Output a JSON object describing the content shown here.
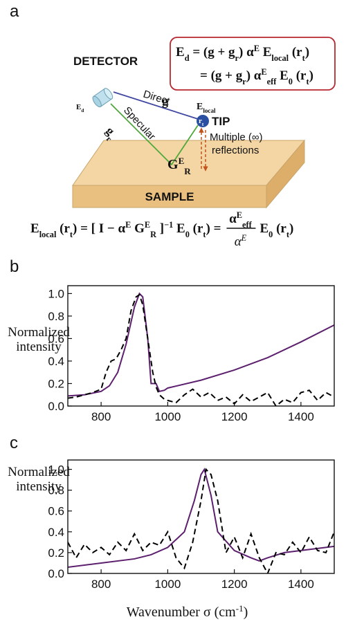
{
  "panel_a": {
    "label": "a",
    "detector": "DETECTOR",
    "detector_field": [
      {
        "t": "E",
        "sub": "d"
      }
    ],
    "direct": "Direct",
    "g": "g",
    "specular": "Specular",
    "g_r": [
      {
        "t": "g",
        "sub": "r"
      }
    ],
    "local_field": [
      {
        "t": "E",
        "sub": "local"
      }
    ],
    "tip_position": [
      {
        "t": "r",
        "sub": "t"
      }
    ],
    "tip": "TIP",
    "multiple": "Multiple (∞)",
    "reflections": "reflections",
    "green_function": [
      {
        "t": "G",
        "sub": "R",
        "sup": "E"
      }
    ],
    "sample": "SAMPLE",
    "box_equation": [
      [
        {
          "t": "E",
          "sub": "d"
        },
        {
          "t": " = (g + g",
          "sub": "r"
        },
        {
          "t": ") α",
          "sup": "E"
        },
        {
          "t": " E",
          "sub": "local"
        },
        {
          "t": " (r",
          "sub": "t"
        },
        {
          "t": ")"
        }
      ],
      [
        {
          "t": "= (g + g",
          "sub": "r"
        },
        {
          "t": ") α",
          "sup": "E",
          "sub": "eff"
        },
        {
          "t": " E",
          "sub": "0"
        },
        {
          "t": " (r",
          "sub": "t"
        },
        {
          "t": ")"
        }
      ]
    ],
    "bottom_equation": {
      "left": [
        {
          "t": "E",
          "sub": "local"
        },
        {
          "t": " (r",
          "sub": "t"
        },
        {
          "t": ") = [ I − α",
          "sup": "E"
        },
        {
          "t": " G",
          "sub": "R",
          "sup": "E"
        },
        {
          "t": " ]",
          "sup": "−1"
        },
        {
          "t": " E",
          "sub": "0"
        },
        {
          "t": " (r",
          "sub": "t"
        },
        {
          "t": ") ="
        }
      ],
      "numerator": [
        {
          "t": "α",
          "sup": "E",
          "sub": "eff"
        }
      ],
      "denominator": [
        {
          "t": "α",
          "sup": "E"
        }
      ],
      "right": [
        {
          "t": "E",
          "sub": "0"
        },
        {
          "t": " (r",
          "sub": "t"
        },
        {
          "t": ")"
        }
      ]
    }
  },
  "chart_data": [
    {
      "type": "line",
      "label": "b",
      "ylabel": [
        "Normalized",
        "intensity"
      ],
      "xlim": [
        700,
        1500
      ],
      "xticks": [
        800,
        1000,
        1200,
        1400
      ],
      "ylim": [
        0,
        1.07
      ],
      "yticks": [
        {
          "value": 0,
          "label": "0.0"
        },
        0.2,
        0.4,
        0.6,
        0.8,
        {
          "value": 1,
          "label": "1.0"
        }
      ],
      "series": [
        {
          "color": "#5c1f6e",
          "x": [
            700,
            750,
            800,
            825,
            850,
            875,
            900,
            915,
            925,
            940,
            950,
            965,
            975,
            990,
            1000,
            1100,
            1200,
            1300,
            1400,
            1500
          ],
          "values": [
            0.09,
            0.1,
            0.13,
            0.18,
            0.3,
            0.55,
            0.88,
            1.0,
            0.97,
            0.6,
            0.2,
            0.2,
            0.13,
            0.14,
            0.16,
            0.23,
            0.32,
            0.43,
            0.57,
            0.72
          ]
        },
        {
          "color": "#000000",
          "dash": true,
          "x": [
            700,
            725,
            750,
            775,
            800,
            815,
            830,
            845,
            860,
            875,
            890,
            905,
            915,
            925,
            940,
            955,
            965,
            975,
            990,
            1000,
            1025,
            1050,
            1075,
            1100,
            1125,
            1150,
            1175,
            1200,
            1225,
            1250,
            1275,
            1300,
            1325,
            1350,
            1375,
            1400,
            1425,
            1450,
            1475,
            1500
          ],
          "values": [
            0.07,
            0.08,
            0.1,
            0.12,
            0.15,
            0.3,
            0.4,
            0.42,
            0.5,
            0.6,
            0.85,
            0.97,
            0.99,
            0.9,
            0.6,
            0.3,
            0.17,
            0.1,
            0.06,
            0.05,
            0.03,
            0.1,
            0.15,
            0.08,
            0.12,
            0.05,
            0.08,
            0.02,
            0.1,
            0.04,
            0.08,
            0.12,
            0.0,
            0.06,
            0.03,
            0.12,
            0.14,
            0.05,
            0.12,
            0.08
          ]
        }
      ]
    },
    {
      "type": "line",
      "label": "c",
      "ylabel": [
        "Normalized",
        "intensity"
      ],
      "xlabel": [
        {
          "t": "Wavenumber σ (cm",
          "sup": "-1"
        },
        {
          "t": ")"
        }
      ],
      "xlim": [
        700,
        1500
      ],
      "xticks": [
        800,
        1000,
        1200,
        1400
      ],
      "ylim": [
        0,
        1.09
      ],
      "yticks": [
        {
          "value": 0,
          "label": "0.0"
        },
        0.2,
        0.4,
        0.6,
        0.8,
        {
          "value": 1,
          "label": "1.0"
        }
      ],
      "series": [
        {
          "color": "#5c1f6e",
          "x": [
            700,
            800,
            900,
            950,
            1000,
            1050,
            1080,
            1100,
            1110,
            1130,
            1150,
            1200,
            1250,
            1275,
            1300,
            1350,
            1400,
            1450,
            1500
          ],
          "values": [
            0.06,
            0.1,
            0.14,
            0.18,
            0.25,
            0.4,
            0.7,
            0.95,
            1.0,
            0.75,
            0.4,
            0.22,
            0.15,
            0.12,
            0.15,
            0.2,
            0.22,
            0.24,
            0.26
          ]
        },
        {
          "color": "#000000",
          "dash": true,
          "x": [
            700,
            725,
            750,
            775,
            800,
            825,
            850,
            875,
            900,
            925,
            950,
            975,
            1000,
            1025,
            1050,
            1075,
            1100,
            1115,
            1130,
            1150,
            1175,
            1200,
            1225,
            1250,
            1275,
            1300,
            1325,
            1350,
            1375,
            1400,
            1425,
            1450,
            1475,
            1500
          ],
          "values": [
            0.3,
            0.15,
            0.28,
            0.2,
            0.25,
            0.18,
            0.3,
            0.22,
            0.38,
            0.22,
            0.3,
            0.27,
            0.4,
            0.15,
            0.05,
            0.3,
            0.7,
            1.0,
            0.95,
            0.7,
            0.2,
            0.35,
            0.15,
            0.38,
            0.15,
            0.0,
            0.2,
            0.18,
            0.3,
            0.2,
            0.35,
            0.22,
            0.2,
            0.4
          ]
        }
      ]
    }
  ]
}
